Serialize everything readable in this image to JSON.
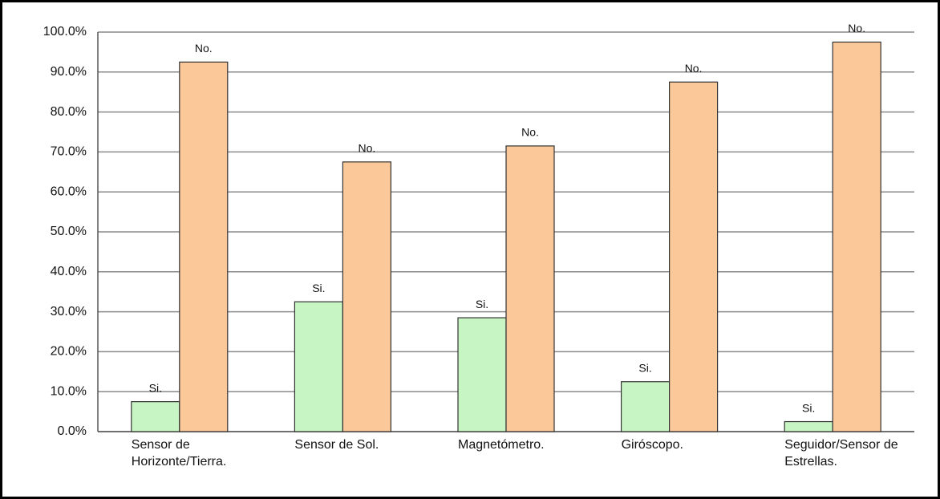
{
  "chart_data": {
    "type": "bar",
    "categories": [
      "Sensor de Horizonte/Tierra.",
      "Sensor de Sol.",
      "Magnetómetro.",
      "Giróscopo.",
      "Seguidor/Sensor de Estrellas."
    ],
    "series": [
      {
        "name": "Si.",
        "color": "#c8f5c4",
        "values": [
          7.5,
          32.5,
          28.5,
          12.5,
          2.5
        ]
      },
      {
        "name": "No.",
        "color": "#fbc999",
        "values": [
          92.5,
          67.5,
          71.5,
          87.5,
          97.5
        ]
      }
    ],
    "ylim": [
      0,
      100
    ],
    "yticks": [
      {
        "value": 0,
        "label": "0.0%"
      },
      {
        "value": 10,
        "label": "10.0%"
      },
      {
        "value": 20,
        "label": "20.0%"
      },
      {
        "value": 30,
        "label": "30.0%"
      },
      {
        "value": 40,
        "label": "40.0%"
      },
      {
        "value": 50,
        "label": "50.0%"
      },
      {
        "value": 60,
        "label": "60.0%"
      },
      {
        "value": 70,
        "label": "70.0%"
      },
      {
        "value": 80,
        "label": "80.0%"
      },
      {
        "value": 90,
        "label": "90.0%"
      },
      {
        "value": 100,
        "label": "100.0%"
      }
    ],
    "grid": true
  }
}
